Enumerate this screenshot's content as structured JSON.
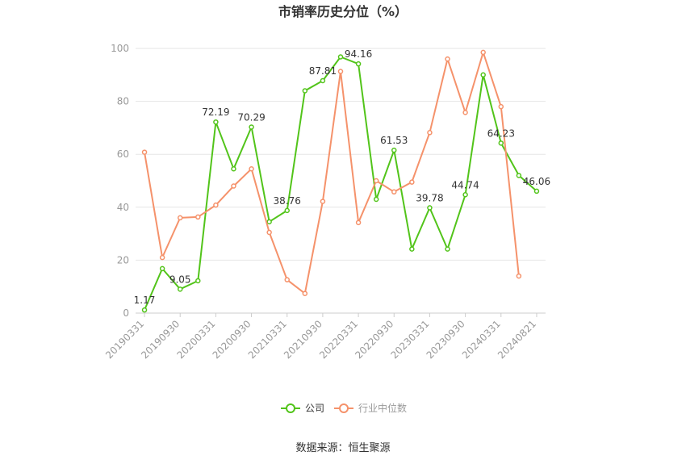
{
  "chart_data": {
    "type": "line",
    "title": "市销率历史分位（%）",
    "source": "数据来源：恒生聚源",
    "ylim": [
      0,
      100
    ],
    "yticks": [
      0,
      20,
      40,
      60,
      80,
      100
    ],
    "x_tick_labels": [
      "20190331",
      "20190930",
      "20200331",
      "20200930",
      "20210331",
      "20210930",
      "20220331",
      "20220930",
      "20230331",
      "20230930",
      "20240331",
      "20240821"
    ],
    "x": [
      "20190331",
      "20190630",
      "20190930",
      "20191231",
      "20200331",
      "20200630",
      "20200930",
      "20201231",
      "20210331",
      "20210630",
      "20210930",
      "20211231",
      "20220331",
      "20220630",
      "20220930",
      "20221231",
      "20230331",
      "20230630",
      "20230930",
      "20231231",
      "20240331",
      "20240630",
      "20240821"
    ],
    "series": [
      {
        "name": "公司",
        "color": "#52c41a",
        "values": [
          1.17,
          16.8,
          9.05,
          12.2,
          72.19,
          54.5,
          70.29,
          34.5,
          38.76,
          84.0,
          87.81,
          96.8,
          94.16,
          43.0,
          61.53,
          24.2,
          39.78,
          24.2,
          44.74,
          90.0,
          64.23,
          52.0,
          46.06
        ],
        "labels": {
          "0": "1.17",
          "2": "9.05",
          "4": "72.19",
          "6": "70.29",
          "8": "38.76",
          "10": "87.81",
          "12": "94.16",
          "14": "61.53",
          "16": "39.78",
          "18": "44.74",
          "20": "64.23",
          "22": "46.06"
        }
      },
      {
        "name": "行业中位数",
        "color": "#f5926b",
        "values": [
          60.8,
          21.0,
          36.0,
          36.3,
          40.8,
          48.0,
          54.5,
          30.5,
          12.6,
          7.4,
          42.2,
          91.3,
          34.2,
          50.0,
          45.8,
          49.5,
          68.2,
          96.0,
          75.8,
          98.5,
          78.0,
          14.0,
          null
        ]
      }
    ],
    "colors": {
      "axis": "#cccccc",
      "grid": "#e6e6e6"
    }
  }
}
